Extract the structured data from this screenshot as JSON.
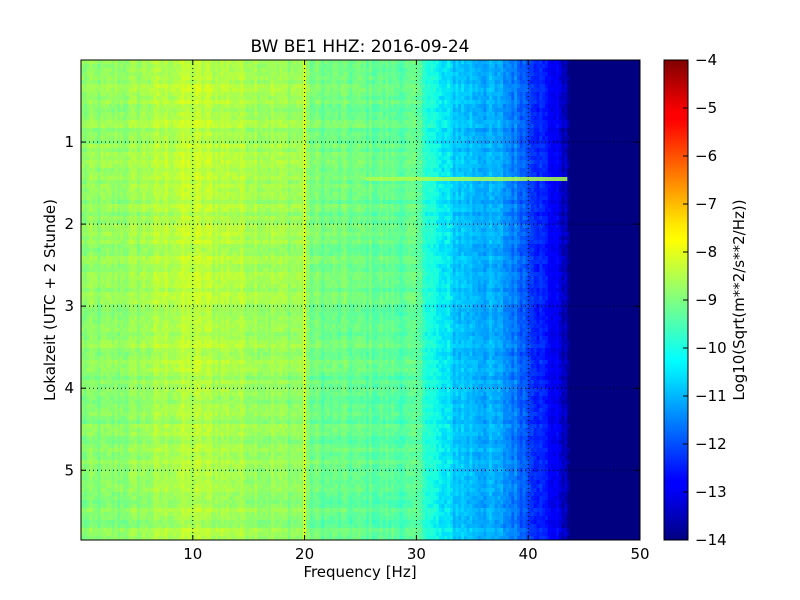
{
  "chart_data": {
    "type": "heatmap",
    "title": "BW BE1 HHZ: 2016-09-24",
    "xlabel": "Frequency [Hz]",
    "ylabel": "Lokalzeit (UTC + 2 Stunde)",
    "xlim": [
      0.0,
      50.0
    ],
    "ylim": [
      5.85,
      0.0
    ],
    "x_ticks": [
      10,
      20,
      30,
      40,
      50
    ],
    "y_ticks": [
      1,
      2,
      3,
      4,
      5
    ],
    "grid": true,
    "colormap": "jet",
    "colorbar": {
      "label": "Log10(Sqrt(m**2/s**2/Hz))",
      "range": [
        -14,
        -4
      ],
      "ticks": [
        -4,
        -5,
        -6,
        -7,
        -8,
        -9,
        -10,
        -11,
        -12,
        -13,
        -14
      ]
    },
    "frequency_profile": {
      "x": [
        0,
        2,
        5,
        8,
        10,
        12,
        15,
        18,
        19.6,
        20.4,
        22,
        25,
        28,
        30,
        32,
        34,
        36,
        38,
        40,
        41.5,
        43,
        43.8,
        50
      ],
      "values": [
        -8.8,
        -8.8,
        -8.6,
        -8.3,
        -8.2,
        -8.3,
        -8.4,
        -8.6,
        -8.6,
        -9.0,
        -9.1,
        -9.2,
        -9.3,
        -9.4,
        -10.5,
        -10.8,
        -11.0,
        -11.3,
        -11.9,
        -12.6,
        -13.2,
        -14.0,
        -14.0
      ]
    },
    "features": [
      {
        "type": "horizontal_line",
        "y": 1.45,
        "x_range": [
          25.5,
          43.5
        ],
        "value": -8.4
      },
      {
        "type": "vertical_line",
        "x": 20.0,
        "value": -7.6
      }
    ]
  }
}
